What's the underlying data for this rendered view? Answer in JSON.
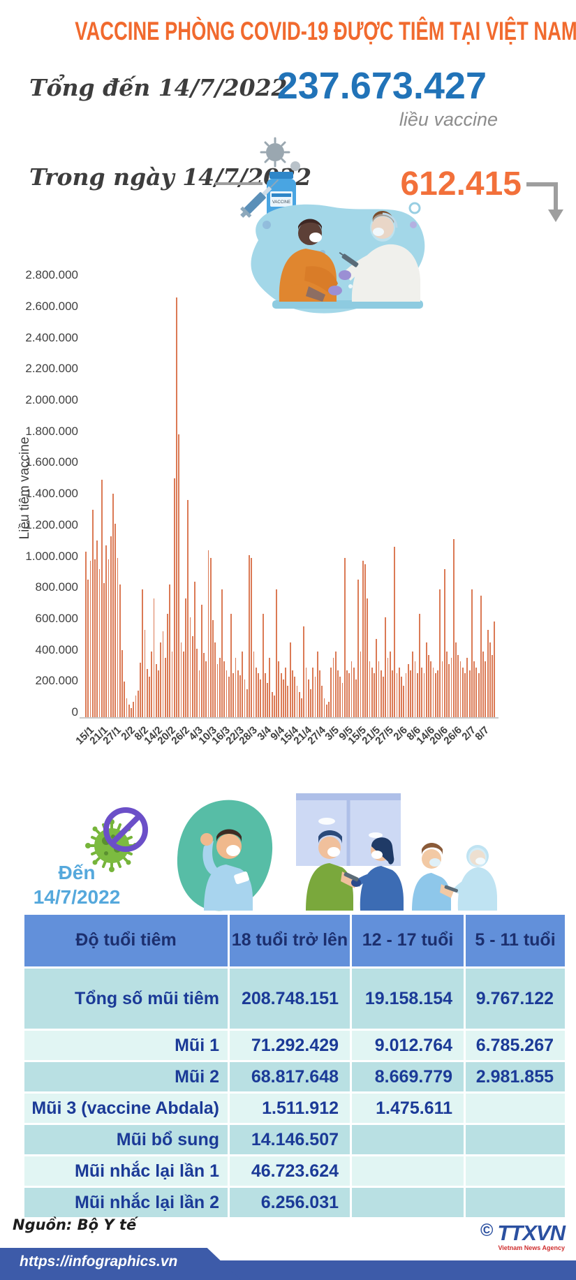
{
  "header": {
    "title": "VACCINE PHÒNG COVID-19 ĐƯỢC TIÊM TẠI VIỆT NAM"
  },
  "stats": {
    "total_label": "Tổng đến 14/7/2022",
    "total_value": "237.673.427",
    "total_unit": "liều vaccine",
    "daily_label": "Trong ngày 14/7/2022",
    "daily_value": "612.415"
  },
  "chart_data": {
    "type": "bar",
    "title": "",
    "xlabel": "",
    "ylabel": "Liều tiêm vaccine",
    "ylim": [
      0,
      2800000
    ],
    "ytick_step": 200000,
    "grid": false,
    "legend": "none",
    "bar_color": "#db7a55",
    "ytick_labels": [
      "0",
      "200.000",
      "400.000",
      "600.000",
      "800.000",
      "1.000.000",
      "1.200.000",
      "1.400.000",
      "1.600.000",
      "1.800.000",
      "2.000.000",
      "2.200.000",
      "2.400.000",
      "2.600.000",
      "2.800.000"
    ],
    "x_tick_labels": [
      "15/1",
      "21/1",
      "27/1",
      "2/2",
      "8/2",
      "14/2",
      "20/2",
      "26/2",
      "4/3",
      "10/3",
      "16/3",
      "22/3",
      "28/3",
      "3/4",
      "9/4",
      "15/4",
      "21/4",
      "27/4",
      "3/5",
      "9/5",
      "15/5",
      "21/5",
      "27/5",
      "2/6",
      "8/6",
      "14/6",
      "20/6",
      "26/6",
      "2/7",
      "8/7"
    ],
    "x_tick_every": 6,
    "x_start_date": "15/1/2022",
    "x_end_date": "14/7/2022",
    "values": [
      1060000,
      880000,
      1000000,
      1330000,
      1010000,
      1130000,
      950000,
      1520000,
      860000,
      1100000,
      1010000,
      1160000,
      1430000,
      1240000,
      1020000,
      850000,
      430000,
      230000,
      120000,
      80000,
      60000,
      100000,
      140000,
      170000,
      350000,
      820000,
      560000,
      310000,
      260000,
      420000,
      760000,
      340000,
      300000,
      480000,
      550000,
      380000,
      660000,
      850000,
      420000,
      1530000,
      2690000,
      1810000,
      480000,
      420000,
      760000,
      1390000,
      640000,
      520000,
      870000,
      440000,
      300000,
      720000,
      410000,
      360000,
      1070000,
      1020000,
      620000,
      480000,
      340000,
      380000,
      820000,
      360000,
      300000,
      260000,
      660000,
      280000,
      380000,
      300000,
      270000,
      420000,
      240000,
      180000,
      1040000,
      1020000,
      420000,
      320000,
      280000,
      240000,
      660000,
      280000,
      220000,
      380000,
      160000,
      140000,
      820000,
      360000,
      280000,
      240000,
      320000,
      200000,
      480000,
      300000,
      260000,
      200000,
      160000,
      120000,
      580000,
      320000,
      240000,
      180000,
      320000,
      260000,
      420000,
      300000,
      200000,
      120000,
      80000,
      100000,
      320000,
      380000,
      420000,
      300000,
      260000,
      220000,
      1020000,
      300000,
      280000,
      360000,
      320000,
      240000,
      880000,
      420000,
      1000000,
      980000,
      760000,
      360000,
      320000,
      280000,
      500000,
      360000,
      300000,
      260000,
      640000,
      380000,
      420000,
      300000,
      1090000,
      280000,
      320000,
      260000,
      200000,
      280000,
      340000,
      300000,
      420000,
      360000,
      280000,
      660000,
      320000,
      280000,
      480000,
      400000,
      360000,
      320000,
      280000,
      300000,
      820000,
      360000,
      950000,
      420000,
      340000,
      380000,
      1140000,
      480000,
      400000,
      360000,
      320000,
      280000,
      380000,
      300000,
      820000,
      360000,
      320000,
      280000,
      780000,
      420000,
      360000,
      560000,
      480000,
      400000,
      612415
    ]
  },
  "table_section": {
    "date_label_line1": "Đến",
    "date_label_line2": "14/7/2022",
    "table": {
      "header": [
        "Độ tuổi tiêm",
        "18 tuổi trở lên",
        "12 - 17 tuổi",
        "5 - 11 tuổi"
      ],
      "rows": [
        {
          "label": "Tổng số mũi tiêm",
          "values": [
            "208.748.151",
            "19.158.154",
            "9.767.122"
          ]
        },
        {
          "label": "Mũi 1",
          "values": [
            "71.292.429",
            "9.012.764",
            "6.785.267"
          ]
        },
        {
          "label": "Mũi 2",
          "values": [
            "68.817.648",
            "8.669.779",
            "2.981.855"
          ]
        },
        {
          "label": "Mũi 3 (vaccine Abdala)",
          "values": [
            "1.511.912",
            "1.475.611",
            ""
          ]
        },
        {
          "label": "Mũi bổ sung",
          "values": [
            "14.146.507",
            "",
            ""
          ]
        },
        {
          "label": "Mũi nhắc lại lần 1",
          "values": [
            "46.723.624",
            "",
            ""
          ]
        },
        {
          "label": "Mũi nhắc lại lần 2",
          "values": [
            "6.256.031",
            "",
            ""
          ]
        }
      ]
    }
  },
  "footer": {
    "source": "Nguồn: Bộ Y tế",
    "url": "https://infographics.vn",
    "copyright_symbol": "©",
    "agency_logo": "TTXVN",
    "agency_caption": "Vietnam News Agency"
  },
  "icons": {
    "syringe_vial": "syringe-and-vaccine-vial-icon",
    "down_arrow": "elbow-down-arrow-icon",
    "no_virus": "virus-prohibition-icon"
  },
  "colors": {
    "title_orange": "#f16a2e",
    "total_blue": "#2173b8",
    "daily_orange": "#f2703a",
    "bar_orange": "#db7a55",
    "unit_gray": "#8c8c8c",
    "table_header_bg": "#6290da",
    "table_row_teal": "#b9e0e3",
    "table_row_light": "#e1f5f3",
    "table_text_navy": "#1b3a97",
    "date_light_blue": "#55a8dc",
    "footer_blue": "#3d5ba9",
    "agency_blue": "#2b50a0",
    "agency_red": "#cf2e2e"
  }
}
